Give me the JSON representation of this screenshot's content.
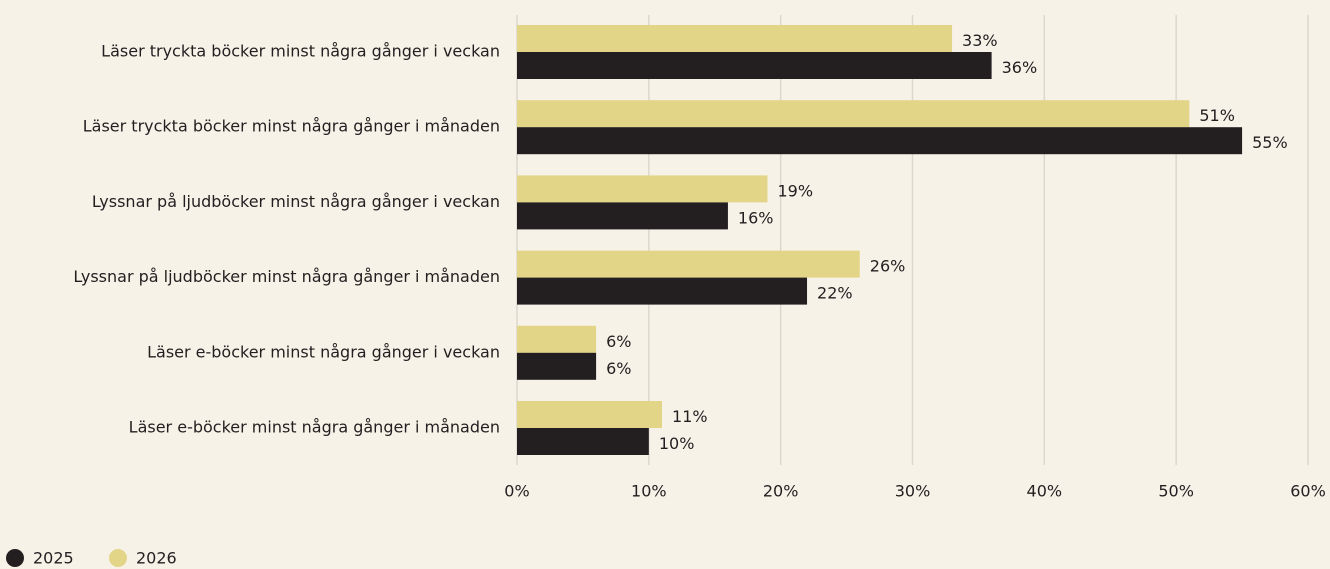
{
  "chart_data": {
    "type": "barh",
    "categories": [
      "Läser tryckta böcker minst några gånger i veckan",
      "Läser tryckta böcker minst några gånger i månaden",
      "Lyssnar på ljudböcker minst några gånger i veckan",
      "Lyssnar på ljudböcker minst några gånger i månaden",
      "Läser e-böcker minst några gånger i veckan",
      "Läser e-böcker minst några gånger i månaden"
    ],
    "series": [
      {
        "name": "2025",
        "color": "#231f20",
        "values": [
          36,
          55,
          16,
          22,
          6,
          10
        ],
        "value_labels": [
          "36%",
          "55%",
          "16%",
          "22%",
          "6%",
          "10%"
        ]
      },
      {
        "name": "2026",
        "color": "#e3d588",
        "values": [
          33,
          51,
          19,
          26,
          6,
          11
        ],
        "value_labels": [
          "33%",
          "51%",
          "19%",
          "26%",
          "6%",
          "11%"
        ]
      }
    ],
    "xlim": [
      0,
      60
    ],
    "xticks": [
      {
        "value": 0,
        "label": "0%"
      },
      {
        "value": 10,
        "label": "10%"
      },
      {
        "value": 20,
        "label": "20%"
      },
      {
        "value": 30,
        "label": "30%"
      },
      {
        "value": 40,
        "label": "40%"
      },
      {
        "value": 50,
        "label": "50%"
      },
      {
        "value": 60,
        "label": "60%"
      }
    ],
    "grid": true,
    "legend": "bottom-left"
  }
}
